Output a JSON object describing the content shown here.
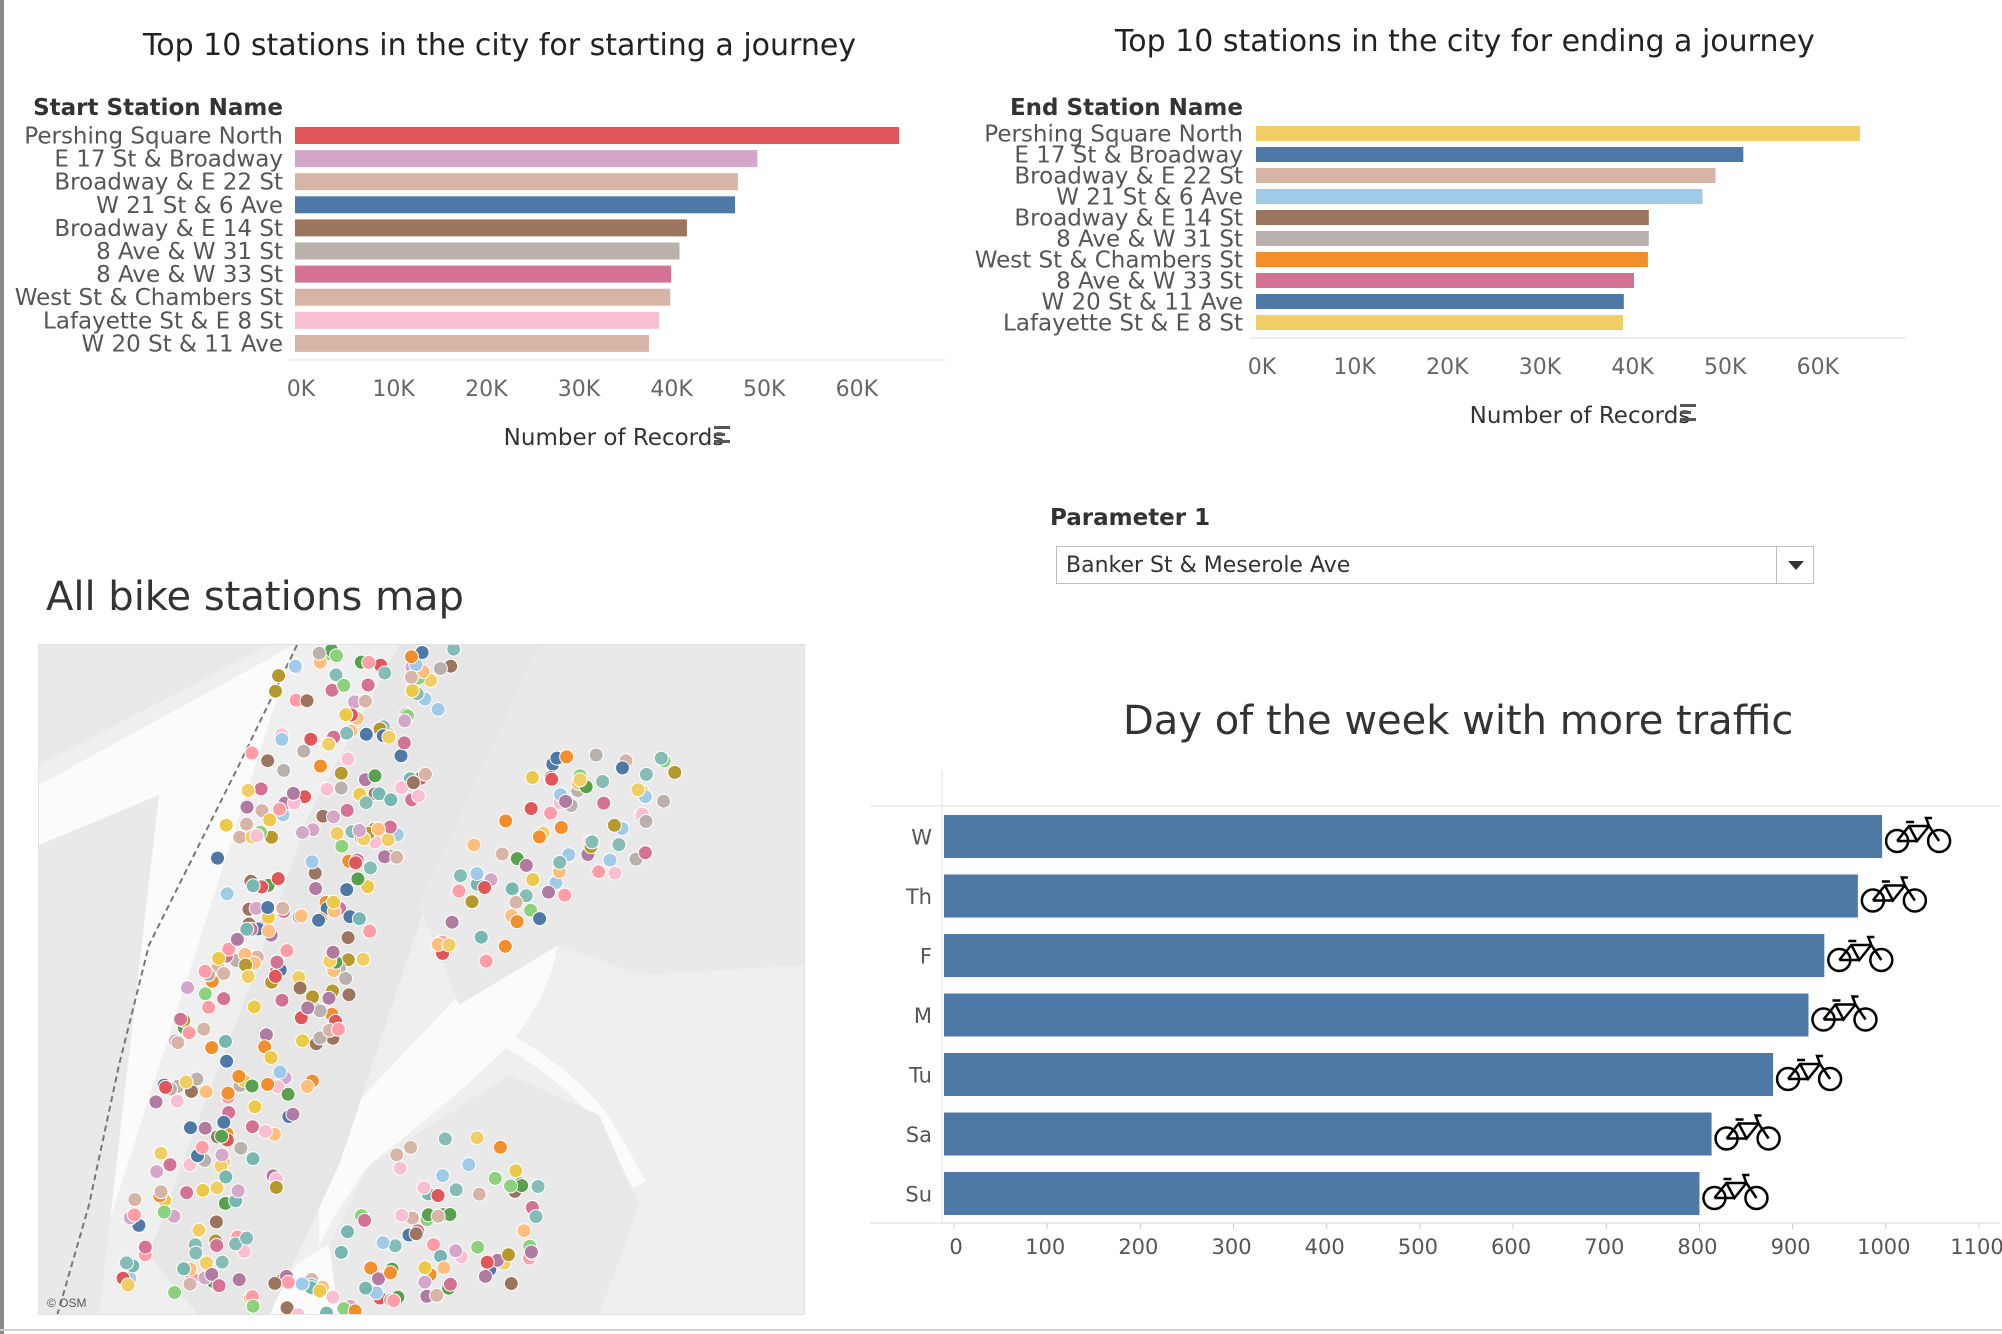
{
  "charts": {
    "start": {
      "title": "Top 10 stations in the city for starting a journey",
      "col_header": "Start Station Name",
      "xlabel": "Number of Records"
    },
    "end": {
      "title": "Top 10 stations in the city for ending a journey",
      "col_header": "End Station Name",
      "xlabel": "Number of Records"
    },
    "dow": {
      "title": "Day of the week with more traffic"
    }
  },
  "map": {
    "title": "All bike stations map",
    "attribution": "© OSM"
  },
  "parameter": {
    "label": "Parameter 1",
    "value": "Banker St & Meserole Ave"
  },
  "chart_data": [
    {
      "type": "bar",
      "orientation": "horizontal",
      "title": "Top 10 stations in the city for starting a journey",
      "ylabel": "Start Station Name",
      "xlabel": "Number of Records",
      "xlim": [
        0,
        68000
      ],
      "ticks": [
        "0K",
        "10K",
        "20K",
        "30K",
        "40K",
        "50K",
        "60K"
      ],
      "categories": [
        "Pershing Square North",
        "E 17 St & Broadway",
        "Broadway & E 22 St",
        "W 21 St & 6 Ave",
        "Broadway & E 14 St",
        "8 Ave & W 31 St",
        "8 Ave & W 33 St",
        "West St & Chambers St",
        "Lafayette St & E 8 St",
        "W 20 St & 11 Ave"
      ],
      "values": [
        65200,
        49900,
        47800,
        47500,
        42300,
        41500,
        40600,
        40500,
        39300,
        38200
      ],
      "colors": [
        "#e15759",
        "#d4a6c8",
        "#d7b5a6",
        "#4e79a7",
        "#9c755f",
        "#bab0ac",
        "#d37295",
        "#d7b5a6",
        "#fabfd2",
        "#d7b5a6"
      ],
      "grid": false
    },
    {
      "type": "bar",
      "orientation": "horizontal",
      "title": "Top 10 stations in the city for ending a journey",
      "ylabel": "End Station Name",
      "xlabel": "Number of Records",
      "xlim": [
        0,
        68000
      ],
      "ticks": [
        "0K",
        "10K",
        "20K",
        "30K",
        "40K",
        "50K",
        "60K"
      ],
      "categories": [
        "Pershing Square North",
        "E 17 St & Broadway",
        "Broadway & E 22 St",
        "W 21 St & 6 Ave",
        "Broadway & E 14 St",
        "8 Ave & W 31 St",
        "West St & Chambers St",
        "8 Ave & W 33 St",
        "W 20 St & 11 Ave",
        "Lafayette St & E 8 St"
      ],
      "values": [
        65200,
        52600,
        49600,
        48200,
        42400,
        42400,
        42300,
        40800,
        39700,
        39600
      ],
      "colors": [
        "#f1ce63",
        "#4e79a7",
        "#d7b5a6",
        "#a0cbe8",
        "#9c755f",
        "#bab0ac",
        "#f28e2b",
        "#d37295",
        "#4e79a7",
        "#f1ce63"
      ],
      "grid": false
    },
    {
      "type": "bar",
      "orientation": "horizontal",
      "title": "Day of the week with more traffic",
      "xlabel": "",
      "ylabel": "",
      "xlim": [
        0,
        1100
      ],
      "ticks": [
        0,
        100,
        200,
        300,
        400,
        500,
        600,
        700,
        800,
        900,
        1000,
        1100
      ],
      "categories": [
        "W",
        "Th",
        "F",
        "M",
        "Tu",
        "Sa",
        "Su"
      ],
      "values": [
        996,
        970,
        934,
        917,
        879,
        813,
        800
      ],
      "color": "#4e79a7",
      "marker_icon": "bicycle-icon",
      "grid": false
    }
  ],
  "map_stations": {
    "type": "scatter",
    "marker_colors": [
      "#4e79a7",
      "#f28e2b",
      "#e15759",
      "#76b7b2",
      "#59a14f",
      "#edc948",
      "#b07aa1",
      "#ff9da7",
      "#9c755f",
      "#bab0ac",
      "#a0cbe8",
      "#ffbe7d",
      "#8cd17d",
      "#b6992d",
      "#f1ce63",
      "#86bcb6",
      "#d37295",
      "#fabfd2",
      "#d4a6c8",
      "#d7b5a6"
    ]
  }
}
